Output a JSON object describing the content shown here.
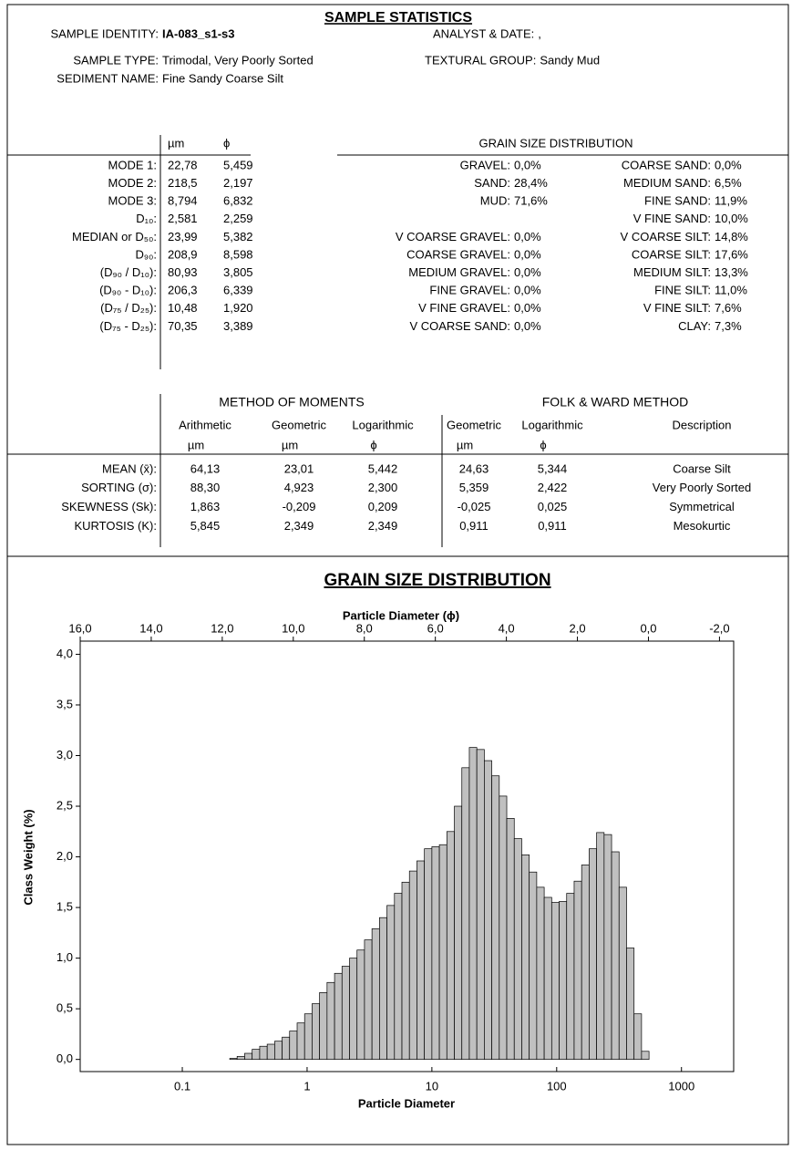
{
  "header": {
    "title": "SAMPLE STATISTICS"
  },
  "info": [
    {
      "label": "SAMPLE IDENTITY:",
      "value": "IA-083_s1-s3"
    },
    {
      "label": "ANALYST & DATE:",
      "value": ","
    },
    {
      "label": "SAMPLE TYPE:",
      "value": "Trimodal, Very Poorly Sorted"
    },
    {
      "label": "TEXTURAL GROUP:",
      "value": "Sandy Mud"
    },
    {
      "label": "SEDIMENT NAME:",
      "value": "Fine Sandy Coarse Silt"
    }
  ],
  "stats": {
    "columns": [
      "µm",
      "ϕ"
    ],
    "rows": [
      [
        "MODE 1:",
        "22,78",
        "5,459"
      ],
      [
        "MODE 2:",
        "218,5",
        "2,197"
      ],
      [
        "MODE 3:",
        "8,794",
        "6,832"
      ],
      [
        "D₁₀:",
        "2,581",
        "2,259"
      ],
      [
        "MEDIAN or D₅₀:",
        "23,99",
        "5,382"
      ],
      [
        "D₉₀:",
        "208,9",
        "8,598"
      ],
      [
        "(D₉₀ / D₁₀):",
        "80,93",
        "3,805"
      ],
      [
        "(D₉₀ - D₁₀):",
        "206,3",
        "6,339"
      ],
      [
        "(D₇₅ / D₂₅):",
        "10,48",
        "1,920"
      ],
      [
        "(D₇₅ - D₂₅):",
        "70,35",
        "3,389"
      ]
    ]
  },
  "distribution": {
    "title": "GRAIN SIZE DISTRIBUTION",
    "left": [
      [
        "GRAVEL:",
        "0,0%"
      ],
      [
        "SAND:",
        "28,4%"
      ],
      [
        "MUD:",
        "71,6%"
      ],
      [
        "V COARSE GRAVEL:",
        "0,0%"
      ],
      [
        "COARSE GRAVEL:",
        "0,0%"
      ],
      [
        "MEDIUM GRAVEL:",
        "0,0%"
      ],
      [
        "FINE GRAVEL:",
        "0,0%"
      ],
      [
        "V FINE GRAVEL:",
        "0,0%"
      ],
      [
        "V COARSE SAND:",
        "0,0%"
      ]
    ],
    "right": [
      [
        "COARSE SAND:",
        "0,0%"
      ],
      [
        "MEDIUM SAND:",
        "6,5%"
      ],
      [
        "FINE SAND:",
        "11,9%"
      ],
      [
        "V FINE SAND:",
        "10,0%"
      ],
      [
        "V COARSE SILT:",
        "14,8%"
      ],
      [
        "COARSE SILT:",
        "17,6%"
      ],
      [
        "MEDIUM SILT:",
        "13,3%"
      ],
      [
        "FINE SILT:",
        "11,0%"
      ],
      [
        "V FINE SILT:",
        "7,6%"
      ],
      [
        "CLAY:",
        "7,3%"
      ]
    ]
  },
  "moments": {
    "groups": [
      "METHOD OF MOMENTS",
      "FOLK & WARD METHOD"
    ],
    "columns": [
      "Arithmetic",
      "Geometric",
      "Logarithmic",
      "Geometric",
      "Logarithmic",
      "Description"
    ],
    "units": [
      "µm",
      "µm",
      "ϕ",
      "µm",
      "ϕ"
    ],
    "rows": [
      [
        "MEAN (x̄):",
        "64,13",
        "23,01",
        "5,442",
        "24,63",
        "5,344",
        "Coarse Silt"
      ],
      [
        "SORTING (σ):",
        "88,30",
        "4,923",
        "2,300",
        "5,359",
        "2,422",
        "Very Poorly Sorted"
      ],
      [
        "SKEWNESS (Sk):",
        "1,863",
        "-0,209",
        "0,209",
        "-0,025",
        "0,025",
        "Symmetrical"
      ],
      [
        "KURTOSIS (K):",
        "5,845",
        "2,349",
        "2,349",
        "0,911",
        "0,911",
        "Mesokurtic"
      ]
    ]
  },
  "chart_data": {
    "type": "histogram",
    "title": "GRAIN SIZE DISTRIBUTION",
    "xlabel": "Particle Diameter",
    "x2label": "Particle Diameter (ϕ)",
    "ylabel": "Class Weight (%)",
    "xscale": "log",
    "xlim": [
      0.0152,
      2620
    ],
    "xticks": [
      0.1,
      1,
      10,
      100,
      1000
    ],
    "x2lim": [
      16,
      -2.4
    ],
    "x2ticks": [
      {
        "value": 16,
        "label": "16,0"
      },
      {
        "value": 14,
        "label": "14,0"
      },
      {
        "value": 12,
        "label": "12,0"
      },
      {
        "value": 10,
        "label": "10,0"
      },
      {
        "value": 8,
        "label": "8,0"
      },
      {
        "value": 6,
        "label": "6,0"
      },
      {
        "value": 4,
        "label": "4,0"
      },
      {
        "value": 2,
        "label": "2,0"
      },
      {
        "value": 0,
        "label": "0,0"
      },
      {
        "value": -2,
        "label": "-2,0"
      }
    ],
    "ylim": [
      -0.12,
      4.13
    ],
    "yticks": [
      {
        "value": 0,
        "label": "0,0"
      },
      {
        "value": 0.5,
        "label": "0,5"
      },
      {
        "value": 1,
        "label": "1,0"
      },
      {
        "value": 1.5,
        "label": "1,5"
      },
      {
        "value": 2,
        "label": "2,0"
      },
      {
        "value": 2.5,
        "label": "2,5"
      },
      {
        "value": 3,
        "label": "3,0"
      },
      {
        "value": 3.5,
        "label": "3,5"
      },
      {
        "value": 4,
        "label": "4,0"
      }
    ],
    "color": "#c0c0c0",
    "bins": [
      0.24,
      0.275,
      0.316,
      0.363,
      0.417,
      0.479,
      0.55,
      0.631,
      0.724,
      0.832,
      0.955,
      1.096,
      1.259,
      1.445,
      1.66,
      1.905,
      2.188,
      2.512,
      2.884,
      3.311,
      3.802,
      4.365,
      5.012,
      5.754,
      6.607,
      7.586,
      8.71,
      10.0,
      11.48,
      13.18,
      15.14,
      17.38,
      19.95,
      22.91,
      26.3,
      30.2,
      34.67,
      39.81,
      45.71,
      52.48,
      60.26,
      69.18,
      79.43,
      91.2,
      104.7,
      120.2,
      138.0,
      158.5,
      182.0,
      208.9,
      239.9,
      275.4,
      316.2,
      363.1,
      416.9,
      478.6,
      549.5
    ],
    "values": [
      0.01,
      0.03,
      0.06,
      0.1,
      0.13,
      0.15,
      0.18,
      0.22,
      0.28,
      0.36,
      0.45,
      0.55,
      0.66,
      0.76,
      0.85,
      0.92,
      1.0,
      1.08,
      1.18,
      1.29,
      1.4,
      1.52,
      1.64,
      1.75,
      1.86,
      1.96,
      2.08,
      2.1,
      2.12,
      2.25,
      2.5,
      2.88,
      3.08,
      3.06,
      2.95,
      2.8,
      2.6,
      2.38,
      2.18,
      2.02,
      1.85,
      1.7,
      1.6,
      1.55,
      1.56,
      1.64,
      1.76,
      1.92,
      2.08,
      2.24,
      2.22,
      2.05,
      1.7,
      1.1,
      0.45,
      0.08
    ]
  }
}
